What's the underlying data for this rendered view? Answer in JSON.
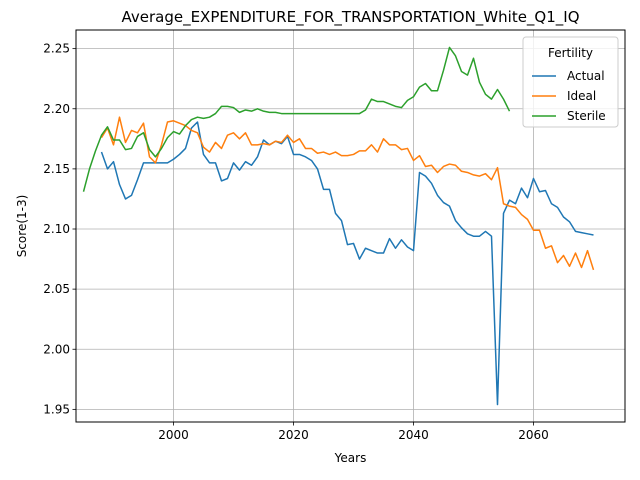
{
  "chart_data": {
    "type": "line",
    "title": "Average_EXPENDITURE_FOR_TRANSPORTATION_White_Q1_IQ",
    "xlabel": "Years",
    "ylabel": "Score(1-3)",
    "xlim": [
      1983.75,
      2075.25
    ],
    "ylim": [
      1.9395,
      2.2655
    ],
    "xticks": [
      2000,
      2020,
      2040,
      2060
    ],
    "yticks": [
      1.95,
      2.0,
      2.05,
      2.1,
      2.15,
      2.2,
      2.25
    ],
    "ytick_labels": [
      "1.95",
      "2.00",
      "2.05",
      "2.10",
      "2.15",
      "2.20",
      "2.25"
    ],
    "grid": true,
    "legend": {
      "title": "Fertility",
      "placement": "top-right"
    },
    "series": [
      {
        "name": "Actual",
        "color": "#1f77b4",
        "x_start": 1988,
        "values": [
          2.164,
          2.15,
          2.156,
          2.137,
          2.125,
          2.128,
          2.141,
          2.155,
          2.155,
          2.155,
          2.155,
          2.155,
          2.158,
          2.162,
          2.167,
          2.184,
          2.189,
          2.162,
          2.155,
          2.155,
          2.14,
          2.142,
          2.155,
          2.149,
          2.156,
          2.153,
          2.16,
          2.174,
          2.17,
          2.173,
          2.171,
          2.177,
          2.162,
          2.162,
          2.16,
          2.157,
          2.15,
          2.133,
          2.133,
          2.113,
          2.107,
          2.087,
          2.088,
          2.075,
          2.084,
          2.082,
          2.08,
          2.08,
          2.092,
          2.084,
          2.091,
          2.085,
          2.082,
          2.147,
          2.144,
          2.138,
          2.128,
          2.122,
          2.119,
          2.107,
          2.101,
          2.096,
          2.094,
          2.094,
          2.098,
          2.094,
          1.954,
          2.113,
          2.124,
          2.121,
          2.134,
          2.126,
          2.142,
          2.131,
          2.132,
          2.121,
          2.118,
          2.11,
          2.106,
          2.098,
          2.097,
          2.096,
          2.095
        ]
      },
      {
        "name": "Ideal",
        "color": "#ff7f0e",
        "x_start": 1988,
        "values": [
          2.176,
          2.184,
          2.17,
          2.193,
          2.172,
          2.182,
          2.18,
          2.188,
          2.16,
          2.155,
          2.17,
          2.189,
          2.19,
          2.188,
          2.186,
          2.182,
          2.18,
          2.168,
          2.164,
          2.172,
          2.167,
          2.178,
          2.18,
          2.175,
          2.18,
          2.17,
          2.17,
          2.171,
          2.17,
          2.173,
          2.172,
          2.178,
          2.172,
          2.175,
          2.167,
          2.167,
          2.163,
          2.164,
          2.162,
          2.164,
          2.161,
          2.161,
          2.162,
          2.165,
          2.165,
          2.17,
          2.164,
          2.175,
          2.17,
          2.17,
          2.166,
          2.167,
          2.157,
          2.161,
          2.152,
          2.153,
          2.147,
          2.152,
          2.154,
          2.153,
          2.148,
          2.147,
          2.145,
          2.144,
          2.146,
          2.141,
          2.151,
          2.121,
          2.119,
          2.118,
          2.112,
          2.108,
          2.099,
          2.099,
          2.084,
          2.086,
          2.072,
          2.078,
          2.069,
          2.08,
          2.068,
          2.082,
          2.066
        ]
      },
      {
        "name": "Sterile",
        "color": "#2ca02c",
        "x_start": 1985,
        "values": [
          2.131,
          2.15,
          2.165,
          2.178,
          2.185,
          2.174,
          2.174,
          2.166,
          2.167,
          2.177,
          2.18,
          2.166,
          2.16,
          2.167,
          2.176,
          2.181,
          2.179,
          2.186,
          2.191,
          2.193,
          2.192,
          2.193,
          2.196,
          2.202,
          2.202,
          2.201,
          2.197,
          2.199,
          2.198,
          2.2,
          2.198,
          2.197,
          2.197,
          2.196,
          2.196,
          2.196,
          2.196,
          2.196,
          2.196,
          2.196,
          2.196,
          2.196,
          2.196,
          2.196,
          2.196,
          2.196,
          2.196,
          2.199,
          2.208,
          2.206,
          2.206,
          2.204,
          2.202,
          2.201,
          2.207,
          2.21,
          2.218,
          2.221,
          2.215,
          2.215,
          2.232,
          2.251,
          2.244,
          2.231,
          2.228,
          2.242,
          2.222,
          2.212,
          2.208,
          2.216,
          2.208,
          2.198
        ]
      }
    ]
  }
}
